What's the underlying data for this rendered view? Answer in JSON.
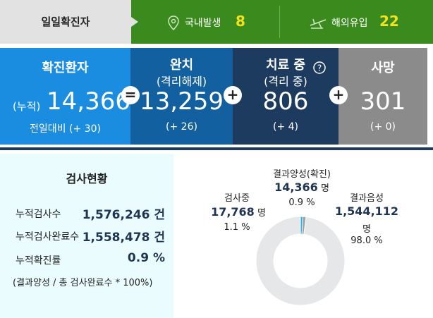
{
  "header": {
    "title": "일일확진자",
    "domestic_label": "국내발생",
    "domestic_value": "8",
    "overseas_label": "해외유입",
    "overseas_value": "22"
  },
  "stats": [
    {
      "title": "확진환자",
      "prefix": "(누적)",
      "value": "14,366",
      "change": "전일대비 (+ 30)"
    },
    {
      "title": "완치",
      "subtitle": "(격리해제)",
      "value": "13,259",
      "change": "(+ 26)"
    },
    {
      "title": "치료 중",
      "subtitle": "(격리 중)",
      "value": "806",
      "change": "(+ 4)"
    },
    {
      "title": "사망",
      "value": "301",
      "change": "(+ 0)"
    }
  ],
  "operators": [
    "=",
    "+",
    "+"
  ],
  "tests": {
    "title": "검사현황",
    "rows": [
      {
        "label": "누적검사수",
        "value": "1,576,246 건"
      },
      {
        "label": "누적검사완료수",
        "value": "1,558,478 건"
      },
      {
        "label": "누적확진률",
        "value": "0.9 %"
      }
    ],
    "note": "(결과양성 / 총 검사완료수 * 100%)"
  },
  "chart_data": {
    "type": "pie",
    "categories": [
      "결과양성(확진)",
      "검사중",
      "결과음성"
    ],
    "values": [
      14366,
      17768,
      1544112
    ],
    "value_labels": [
      "14,366",
      "17,768",
      "1,544,112"
    ],
    "unit": "명",
    "percents": [
      0.9,
      1.1,
      98.0
    ],
    "percent_labels": [
      "0.9 %",
      "1.1 %",
      "98.0 %"
    ],
    "colors": [
      "#2bb0e4",
      "#9aa3a8",
      "#e6e7e8"
    ]
  }
}
